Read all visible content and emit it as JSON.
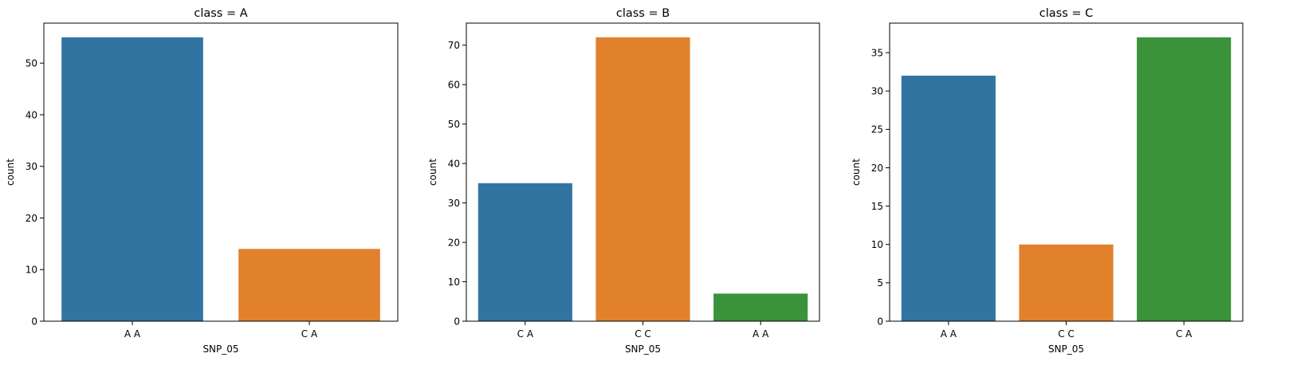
{
  "palette": {
    "blue": "#3274a1",
    "orange": "#e1812c",
    "green": "#3a923a"
  },
  "chart_data": [
    {
      "type": "bar",
      "title": "class = A",
      "xlabel": "SNP_05",
      "ylabel": "count",
      "categories": [
        "A A",
        "C A"
      ],
      "values": [
        55,
        14
      ],
      "colors": [
        "#3274a1",
        "#e1812c"
      ],
      "ylim": [
        0,
        57.75
      ],
      "yticks": [
        0,
        10,
        20,
        30,
        40,
        50
      ],
      "grid": false
    },
    {
      "type": "bar",
      "title": "class = B",
      "xlabel": "SNP_05",
      "ylabel": "count",
      "categories": [
        "C A",
        "C C",
        "A A"
      ],
      "values": [
        35,
        72,
        7
      ],
      "colors": [
        "#3274a1",
        "#e1812c",
        "#3a923a"
      ],
      "ylim": [
        0,
        75.6
      ],
      "yticks": [
        0,
        10,
        20,
        30,
        40,
        50,
        60,
        70
      ],
      "grid": false
    },
    {
      "type": "bar",
      "title": "class = C",
      "xlabel": "SNP_05",
      "ylabel": "count",
      "categories": [
        "A A",
        "C C",
        "C A"
      ],
      "values": [
        32,
        10,
        37
      ],
      "colors": [
        "#3274a1",
        "#e1812c",
        "#3a923a"
      ],
      "ylim": [
        0,
        38.85
      ],
      "yticks": [
        0,
        5,
        10,
        15,
        20,
        25,
        30,
        35
      ],
      "grid": false
    }
  ]
}
